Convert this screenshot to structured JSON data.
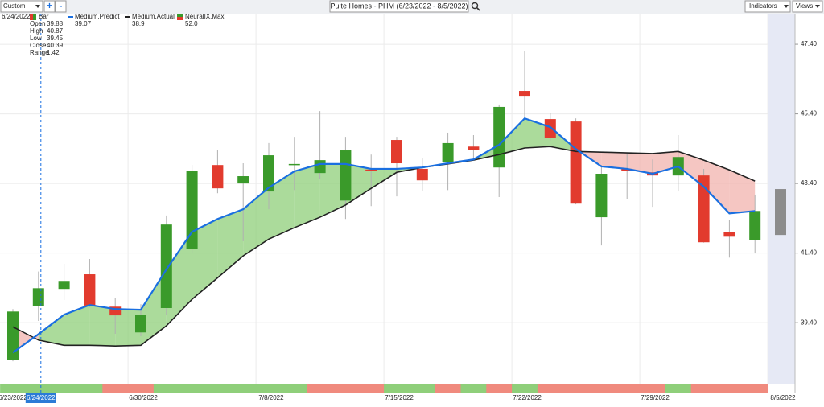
{
  "toolbar": {
    "range_select": "Custom",
    "add": "+",
    "remove": "-",
    "title": "Pulte Homes - PHM (6/23/2022 - 8/5/2022)",
    "indicators": "Indicators",
    "views": "Views"
  },
  "info_panel": {
    "date": "6/24/2022",
    "open_label": "Open",
    "high_label": "High",
    "low_label": "Low",
    "close_label": "Close",
    "range_label": "Range",
    "range": 1.42,
    "neural_value": "52.0",
    "index": 1
  },
  "chart_data": {
    "type": "candlestick",
    "categories": [
      "6/23/2022",
      "6/24/2022",
      null,
      null,
      null,
      "6/30/2022",
      null,
      null,
      null,
      null,
      "7/8/2022",
      null,
      null,
      null,
      null,
      "7/15/2022",
      null,
      null,
      null,
      null,
      "7/22/2022",
      null,
      null,
      null,
      null,
      "7/29/2022",
      null,
      null,
      null,
      null,
      "8/5/2022"
    ],
    "series": [
      {
        "name": "Bar",
        "up_color": "#3a9a2a",
        "down_color": "#e23b2e",
        "open": [
          38.34,
          39.88,
          40.37,
          40.79,
          39.86,
          39.12,
          39.82,
          41.53,
          43.93,
          43.4,
          43.17,
          43.94,
          43.7,
          42.91,
          43.8,
          44.65,
          43.82,
          44.02,
          44.46,
          43.86,
          46.06,
          45.25,
          45.18,
          42.43,
          43.82,
          43.72,
          43.63,
          43.63,
          42.01,
          41.78,
          null
        ],
        "high": [
          39.79,
          40.87,
          41.09,
          41.23,
          40.12,
          39.93,
          42.48,
          43.93,
          44.35,
          43.98,
          44.56,
          44.74,
          45.48,
          44.74,
          44.23,
          44.74,
          44.12,
          44.86,
          44.79,
          45.67,
          47.21,
          45.43,
          45.27,
          43.93,
          44.28,
          44.09,
          44.79,
          43.82,
          42.36,
          43.08,
          null
        ],
        "low": [
          38.29,
          39.45,
          40.05,
          39.84,
          39.08,
          39.01,
          39.61,
          41.39,
          43.12,
          41.74,
          42.66,
          43.21,
          43.54,
          42.38,
          42.75,
          43.03,
          43.19,
          43.21,
          44.07,
          43.01,
          45.25,
          44.63,
          42.8,
          41.62,
          42.96,
          42.73,
          43.17,
          41.7,
          41.27,
          41.39,
          null
        ],
        "close": [
          39.72,
          40.39,
          40.6,
          39.89,
          39.61,
          39.63,
          42.22,
          43.75,
          43.26,
          43.61,
          44.21,
          43.96,
          44.07,
          44.35,
          43.79,
          43.98,
          43.49,
          44.56,
          44.37,
          45.6,
          45.92,
          44.72,
          42.82,
          43.68,
          43.75,
          43.63,
          44.16,
          41.71,
          41.87,
          42.61,
          null
        ]
      },
      {
        "name": "Medium.Predict",
        "color": "#1a6fe0",
        "values": [
          38.54,
          39.07,
          39.63,
          39.91,
          39.79,
          39.77,
          40.93,
          42.01,
          42.38,
          42.66,
          43.28,
          43.75,
          43.96,
          43.96,
          43.82,
          43.82,
          43.86,
          43.98,
          44.09,
          44.51,
          45.27,
          45.02,
          44.39,
          43.89,
          43.82,
          43.68,
          43.89,
          43.31,
          42.54,
          42.61,
          null
        ]
      },
      {
        "name": "Medium.Actual",
        "color": "#222222",
        "values": [
          39.28,
          38.9,
          38.75,
          38.75,
          38.73,
          38.75,
          39.31,
          40.07,
          40.69,
          41.32,
          41.8,
          42.13,
          42.43,
          42.78,
          43.26,
          43.72,
          43.86,
          43.96,
          44.07,
          44.23,
          44.42,
          44.46,
          44.32,
          44.3,
          44.28,
          44.26,
          44.32,
          44.07,
          43.79,
          43.47,
          null
        ]
      },
      {
        "name": "NeuralIX.Max",
        "colors": [
          "#8fcf7a",
          "#8fcf7a",
          "#8fcf7a",
          "#8fcf7a",
          "#f08a7e",
          "#f08a7e",
          "#8fcf7a",
          "#8fcf7a",
          "#8fcf7a",
          "#8fcf7a",
          "#8fcf7a",
          "#8fcf7a",
          "#f08a7e",
          "#f08a7e",
          "#f08a7e",
          "#8fcf7a",
          "#8fcf7a",
          "#f08a7e",
          "#8fcf7a",
          "#f08a7e",
          "#8fcf7a",
          "#f08a7e",
          "#f08a7e",
          "#f08a7e",
          "#f08a7e",
          "#f08a7e",
          "#8fcf7a",
          "#f08a7e",
          "#f08a7e",
          "#f08a7e"
        ]
      }
    ],
    "forecast": {
      "low": 41.92,
      "high": 43.24,
      "color": "#8c8c8c"
    },
    "above_fill": "#8fcf7a",
    "below_fill": "#f2b3ad",
    "ylim": [
      37.67,
      48.28
    ],
    "yticks": [
      {
        "value": 39.4,
        "label": "39.40"
      },
      {
        "value": 41.4,
        "label": "41.40"
      },
      {
        "value": 43.4,
        "label": "43.40"
      },
      {
        "value": 45.4,
        "label": "45.40"
      },
      {
        "value": 47.4,
        "label": "47.40"
      }
    ],
    "grid": true
  }
}
